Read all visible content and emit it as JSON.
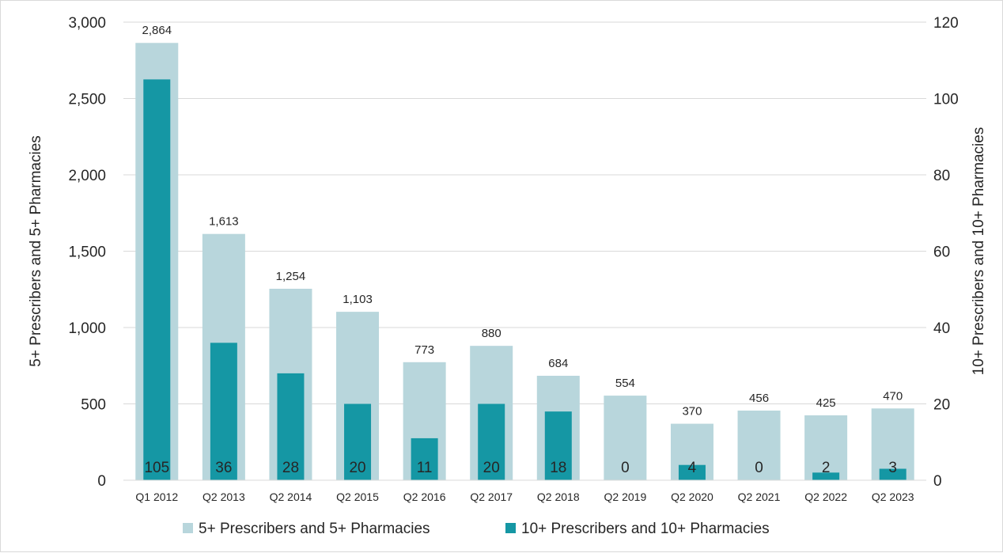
{
  "chart_data": {
    "type": "bar",
    "categories": [
      "Q1 2012",
      "Q2 2013",
      "Q2 2014",
      "Q2 2015",
      "Q2 2016",
      "Q2 2017",
      "Q2 2018",
      "Q2 2019",
      "Q2 2020",
      "Q2 2021",
      "Q2 2022",
      "Q2 2023"
    ],
    "series": [
      {
        "name": "5+ Prescribers and 5+ Pharmacies",
        "axis": "left",
        "color": "#b8d6dc",
        "values": [
          2864,
          1613,
          1254,
          1103,
          773,
          880,
          684,
          554,
          370,
          456,
          425,
          470
        ]
      },
      {
        "name": "10+ Prescribers and 10+ Pharmacies",
        "axis": "right",
        "color": "#1597a4",
        "values": [
          105,
          36,
          28,
          20,
          11,
          20,
          18,
          0,
          4,
          0,
          2,
          3
        ]
      }
    ],
    "data_labels_main": [
      "2,864",
      "1,613",
      "1,254",
      "1,103",
      "773",
      "880",
      "684",
      "554",
      "370",
      "456",
      "425",
      "470"
    ],
    "data_labels_secondary": [
      "105",
      "36",
      "28",
      "20",
      "11",
      "20",
      "18",
      "0",
      "4",
      "0",
      "2",
      "3"
    ],
    "ylabel": "5+ Prescribers and 5+ Pharmacies",
    "y2label": "10+ Prescribers and 10+ Pharmacies",
    "ylim": [
      0,
      3000
    ],
    "y2lim": [
      0,
      120
    ],
    "yticks": [
      "0",
      "500",
      "1,000",
      "1,500",
      "2,000",
      "2,500",
      "3,000"
    ],
    "y2ticks": [
      "0",
      "20",
      "40",
      "60",
      "80",
      "100",
      "120"
    ],
    "grid": true,
    "legend_position": "bottom",
    "gridline_color": "#d9d9d9"
  }
}
